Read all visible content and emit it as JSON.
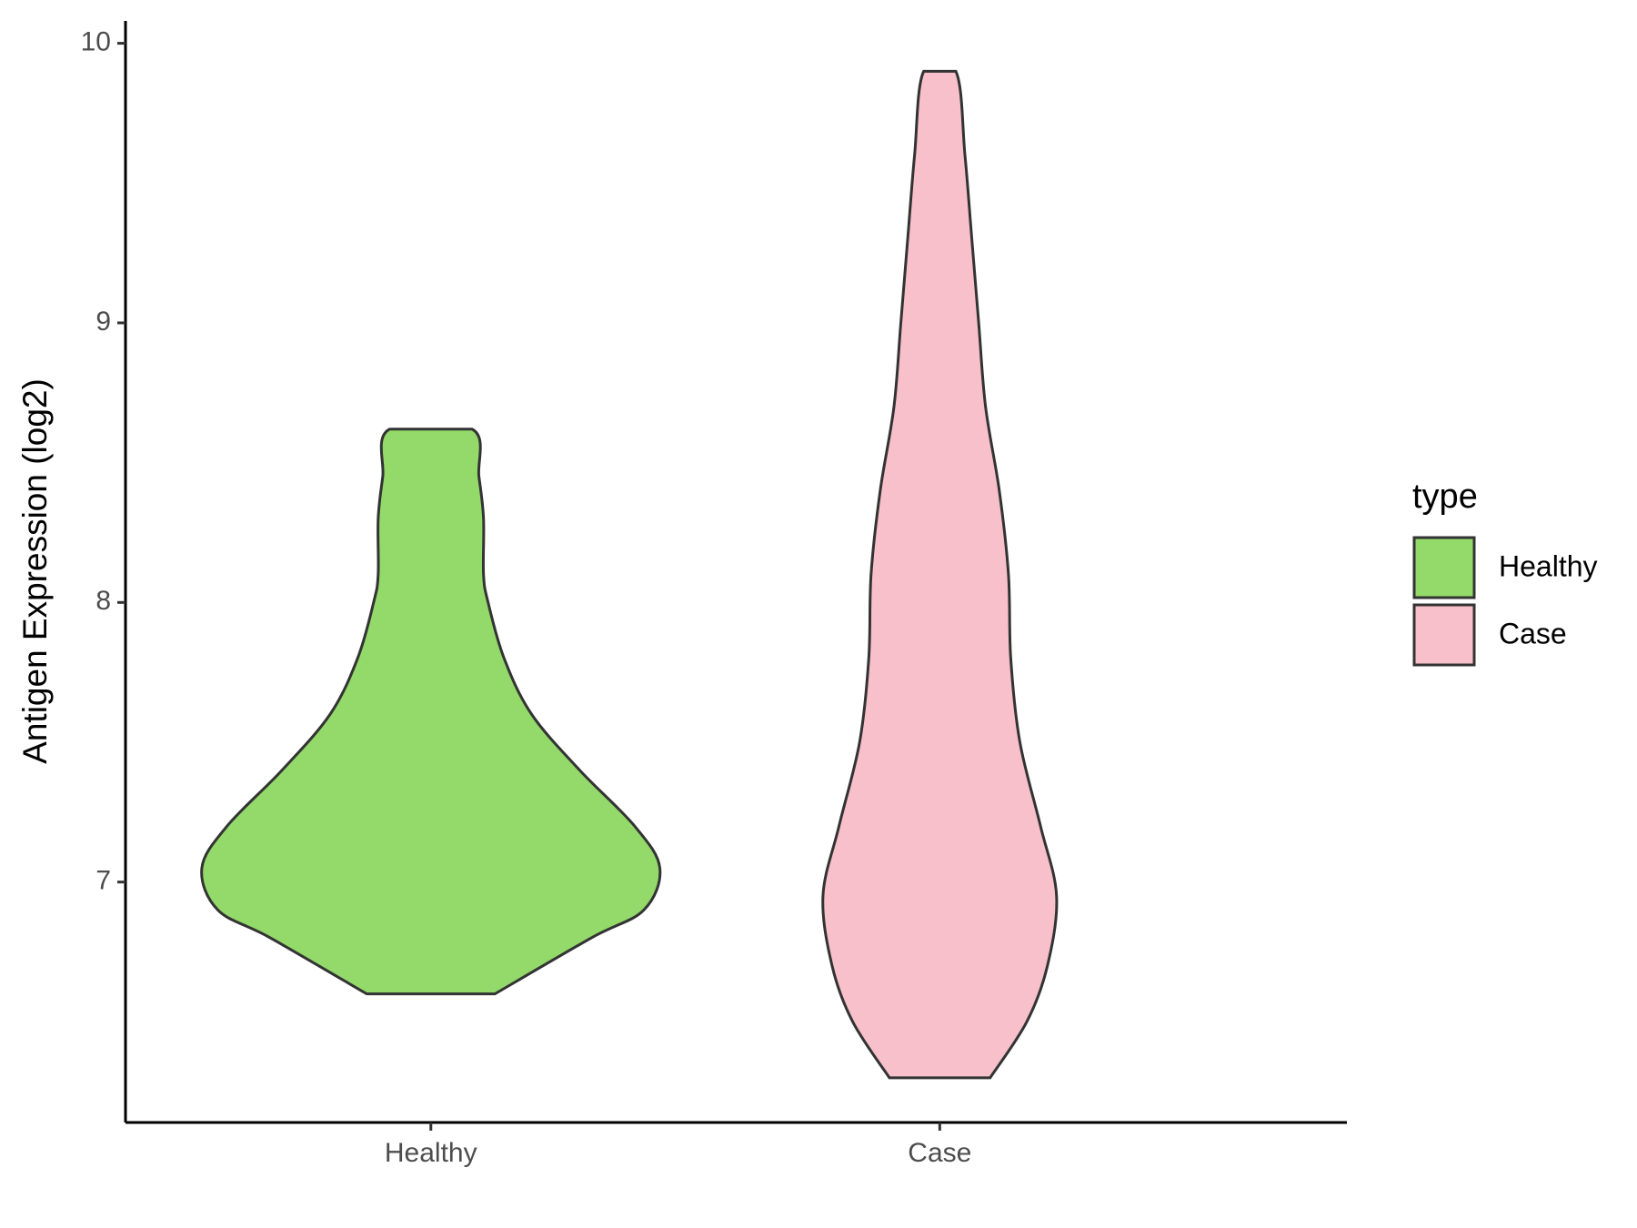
{
  "chart_data": {
    "type": "violin",
    "y_label": "Antigen Expression (log2)",
    "categories": [
      "Healthy",
      "Case"
    ],
    "legend_title": "type",
    "legend_position": "right",
    "series": [
      {
        "name": "Healthy",
        "color": "#93DA6A",
        "y": [
          6.6,
          6.8,
          6.9,
          7.05,
          7.2,
          7.4,
          7.6,
          7.8,
          8.0,
          8.1,
          8.3,
          8.45,
          8.62
        ],
        "density": [
          0.28,
          0.7,
          0.93,
          1,
          0.89,
          0.65,
          0.44,
          0.32,
          0.25,
          0.23,
          0.23,
          0.21,
          0.18
        ]
      },
      {
        "name": "Case",
        "color": "#F8C0CB",
        "y": [
          6.3,
          6.5,
          6.7,
          6.95,
          7.2,
          7.5,
          7.8,
          8.1,
          8.4,
          8.7,
          9.0,
          9.3,
          9.6,
          9.9
        ],
        "density": [
          0.22,
          0.38,
          0.47,
          0.51,
          0.44,
          0.35,
          0.31,
          0.3,
          0.26,
          0.2,
          0.17,
          0.14,
          0.11,
          0.07
        ]
      }
    ],
    "ylim": [
      6.14,
      10.08
    ],
    "yticks": [
      7,
      8,
      9,
      10
    ],
    "grid": false
  }
}
